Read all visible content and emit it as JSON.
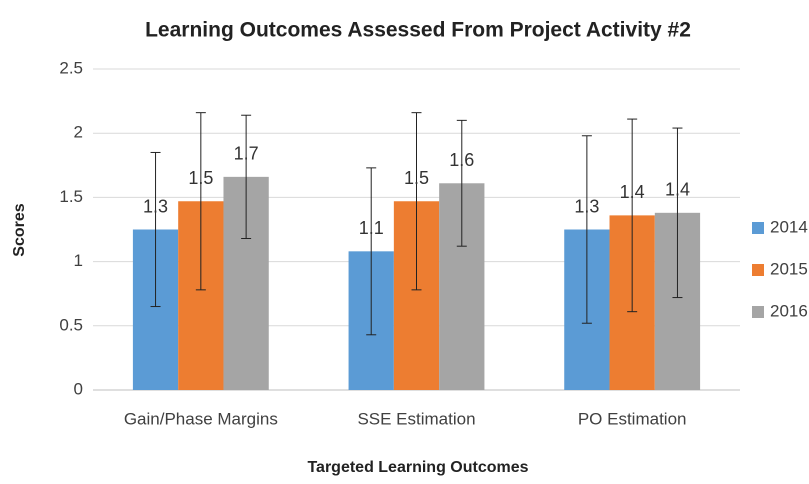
{
  "chart_data": {
    "type": "bar",
    "title": "Learning Outcomes Assessed From Project Activity #2",
    "x_label": "Targeted Learning Outcomes",
    "y_label": "Scores",
    "categories": [
      "Gain/Phase Margins",
      "SSE Estimation",
      "PO Estimation"
    ],
    "series": [
      {
        "name": "2014",
        "color": "#5b9bd5",
        "values": [
          1.25,
          1.08,
          1.25
        ],
        "errors": [
          0.6,
          0.65,
          0.73
        ],
        "value_labels": [
          "1.3",
          "1.1",
          "1.3"
        ]
      },
      {
        "name": "2015",
        "color": "#ed7d31",
        "values": [
          1.47,
          1.47,
          1.36
        ],
        "errors": [
          0.69,
          0.69,
          0.75
        ],
        "value_labels": [
          "1.5",
          "1.5",
          "1.4"
        ]
      },
      {
        "name": "2016",
        "color": "#a5a5a5",
        "values": [
          1.66,
          1.61,
          1.38
        ],
        "errors": [
          0.48,
          0.49,
          0.66
        ],
        "value_labels": [
          "1.7",
          "1.6",
          "1.4"
        ]
      }
    ],
    "ylim": [
      0,
      2.5
    ],
    "yticks": [
      0,
      0.5,
      1,
      1.5,
      2,
      2.5
    ],
    "grid": true,
    "legend": "right"
  }
}
